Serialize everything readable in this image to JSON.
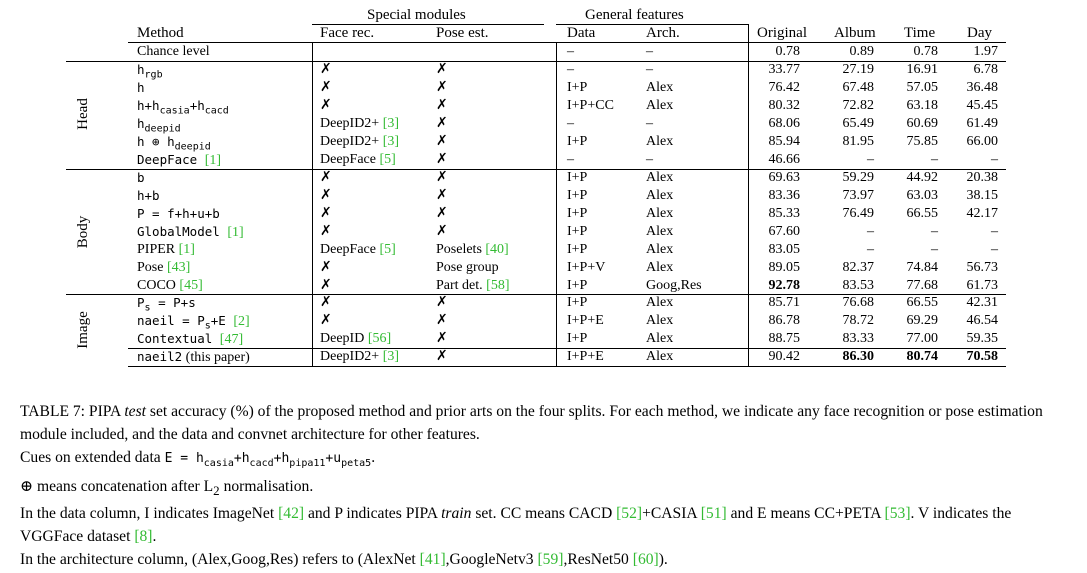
{
  "table": {
    "group_headers": {
      "special": "Special modules",
      "general": "General features"
    },
    "headers": {
      "method": "Method",
      "face": "Face rec.",
      "pose": "Pose est.",
      "data": "Data",
      "arch": "Arch.",
      "original": "Original",
      "album": "Album",
      "time": "Time",
      "day": "Day"
    },
    "groups": [
      "Head",
      "Body",
      "Image"
    ],
    "chance": {
      "method": "Chance level",
      "face": "",
      "pose": "",
      "data": "–",
      "arch": "–",
      "original": "0.78",
      "album": "0.89",
      "time": "0.78",
      "day": "1.97"
    },
    "rows": [
      {
        "method": "h",
        "sub": "rgb",
        "post": "",
        "cite": "",
        "after": "",
        "face": "✗",
        "face_cite": "",
        "pose": "✗",
        "pose_cite": "",
        "data": "–",
        "arch": "–",
        "original": "33.77",
        "album": "27.19",
        "time": "16.91",
        "day": "6.78"
      },
      {
        "method": "h",
        "sub": "",
        "post": "",
        "cite": "",
        "after": "",
        "face": "✗",
        "face_cite": "",
        "pose": "✗",
        "pose_cite": "",
        "data": "I+P",
        "arch": "Alex",
        "original": "76.42",
        "album": "67.48",
        "time": "57.05",
        "day": "36.48"
      },
      {
        "method": "h+h",
        "sub": "casia",
        "post": "+h",
        "sub2": "cacd",
        "cite": "",
        "after": "",
        "face": "✗",
        "face_cite": "",
        "pose": "✗",
        "pose_cite": "",
        "data": "I+P+CC",
        "arch": "Alex",
        "original": "80.32",
        "album": "72.82",
        "time": "63.18",
        "day": "45.45"
      },
      {
        "method": "h",
        "sub": "deepid",
        "post": "",
        "cite": "",
        "after": "",
        "face": "DeepID2+ ",
        "face_cite": "[3]",
        "pose": "✗",
        "pose_cite": "",
        "data": "–",
        "arch": "–",
        "original": "68.06",
        "album": "65.49",
        "time": "60.69",
        "day": "61.49"
      },
      {
        "method": "h ⊕ h",
        "sub": "deepid",
        "post": "",
        "cite": "",
        "after": "",
        "face": "DeepID2+ ",
        "face_cite": "[3]",
        "pose": "✗",
        "pose_cite": "",
        "data": "I+P",
        "arch": "Alex",
        "original": "85.94",
        "album": "81.95",
        "time": "75.85",
        "day": "66.00"
      },
      {
        "method": "DeepFace ",
        "sub": "",
        "post": "",
        "cite": "[1]",
        "after": "",
        "face": "DeepFace ",
        "face_cite": "[5]",
        "pose": "✗",
        "pose_cite": "",
        "data": "–",
        "arch": "–",
        "original": "46.66",
        "album": "–",
        "time": "–",
        "day": "–"
      },
      {
        "method": "b",
        "sub": "",
        "post": "",
        "cite": "",
        "after": "",
        "face": "✗",
        "face_cite": "",
        "pose": "✗",
        "pose_cite": "",
        "data": "I+P",
        "arch": "Alex",
        "original": "69.63",
        "album": "59.29",
        "time": "44.92",
        "day": "20.38"
      },
      {
        "method": "h+b",
        "sub": "",
        "post": "",
        "cite": "",
        "after": "",
        "face": "✗",
        "face_cite": "",
        "pose": "✗",
        "pose_cite": "",
        "data": "I+P",
        "arch": "Alex",
        "original": "83.36",
        "album": "73.97",
        "time": "63.03",
        "day": "38.15"
      },
      {
        "method": "P = f+h+u+b",
        "sub": "",
        "post": "",
        "cite": "",
        "after": "",
        "face": "✗",
        "face_cite": "",
        "pose": "✗",
        "pose_cite": "",
        "data": "I+P",
        "arch": "Alex",
        "original": "85.33",
        "album": "76.49",
        "time": "66.55",
        "day": "42.17"
      },
      {
        "method": "GlobalModel ",
        "sub": "",
        "post": "",
        "cite": "[1]",
        "after": "",
        "face": "✗",
        "face_cite": "",
        "pose": "✗",
        "pose_cite": "",
        "data": "I+P",
        "arch": "Alex",
        "original": "67.60",
        "album": "–",
        "time": "–",
        "day": "–"
      },
      {
        "method": "PIPER ",
        "sub": "",
        "post": "",
        "cite": "[1]",
        "after": "",
        "face": "DeepFace ",
        "face_cite": "[5]",
        "pose": "Poselets ",
        "pose_cite": "[40]",
        "data": "I+P",
        "arch": "Alex",
        "original": "83.05",
        "album": "–",
        "time": "–",
        "day": "–"
      },
      {
        "method": "Pose ",
        "sub": "",
        "post": "",
        "cite": "[43]",
        "after": "",
        "face": "✗",
        "face_cite": "",
        "pose": "Pose group",
        "pose_cite": "",
        "data": "I+P+V",
        "arch": "Alex",
        "original": "89.05",
        "album": "82.37",
        "time": "74.84",
        "day": "56.73"
      },
      {
        "method": "COCO ",
        "sub": "",
        "post": "",
        "cite": "[45]",
        "after": "",
        "face": "✗",
        "face_cite": "",
        "pose": "Part det. ",
        "pose_cite": "[58]",
        "data": "I+P",
        "arch": "Goog,Res",
        "original": "92.78",
        "album": "83.53",
        "time": "77.68",
        "day": "61.73"
      },
      {
        "method": "P",
        "sub": "s",
        "post": " = P+s",
        "cite": "",
        "after": "",
        "face": "✗",
        "face_cite": "",
        "pose": "✗",
        "pose_cite": "",
        "data": "I+P",
        "arch": "Alex",
        "original": "85.71",
        "album": "76.68",
        "time": "66.55",
        "day": "42.31"
      },
      {
        "method": "naeil = P",
        "sub": "s",
        "post": "+E ",
        "cite": "[2]",
        "after": "",
        "face": "✗",
        "face_cite": "",
        "pose": "✗",
        "pose_cite": "",
        "data": "I+P+E",
        "arch": "Alex",
        "original": "86.78",
        "album": "78.72",
        "time": "69.29",
        "day": "46.54"
      },
      {
        "method": "Contextual ",
        "sub": "",
        "post": "",
        "cite": "[47]",
        "after": "",
        "face": "DeepID ",
        "face_cite": "[56]",
        "pose": "✗",
        "pose_cite": "",
        "data": "I+P",
        "arch": "Alex",
        "original": "88.75",
        "album": "83.33",
        "time": "77.00",
        "day": "59.35"
      },
      {
        "method": "naeil2",
        "sub": "",
        "post": "",
        "cite": "",
        "after": " (this paper)",
        "face": "DeepID2+ ",
        "face_cite": "[3]",
        "pose": "✗",
        "pose_cite": "",
        "data": "I+P+E",
        "arch": "Alex",
        "original": "90.42",
        "album": "86.30",
        "time": "80.74",
        "day": "70.58"
      }
    ]
  },
  "caption": {
    "line1_pre": "TABLE 7: PIPA ",
    "line1_ital": "test",
    "line1_post": " set accuracy (%) of the proposed method and prior arts on the four splits. For each method, we indicate any face recognition or pose estimation module included, and the data and convnet architecture for other features.",
    "line2_pre": "Cues on extended data ",
    "line2_formula": "E = h",
    "line2_subs": [
      "casia",
      "cacd",
      "pipa11",
      "peta5"
    ],
    "line3": "⊕ means concatenation after L",
    "line3_sub": "2",
    "line3_post": " normalisation.",
    "line4_a": "In the data column, I indicates ImageNet ",
    "line4_c1": "[42]",
    "line4_b": " and P indicates PIPA ",
    "line4_ital": "train",
    "line4_c": " set. CC means CACD ",
    "line4_c2": "[52]",
    "line4_d": "+CASIA ",
    "line4_c3": "[51]",
    "line4_e": " and E means CC+PETA ",
    "line4_c4": "[53]",
    "line4_f": ". V indicates the VGGFace dataset ",
    "line4_c5": "[8]",
    "line4_g": ".",
    "line5_a": "In the architecture column, (Alex,Goog,Res) refers to (AlexNet ",
    "line5_c1": "[41]",
    "line5_b": ",GoogleNetv3 ",
    "line5_c2": "[59]",
    "line5_c": ",ResNet50 ",
    "line5_c3": "[60]",
    "line5_d": ")."
  }
}
